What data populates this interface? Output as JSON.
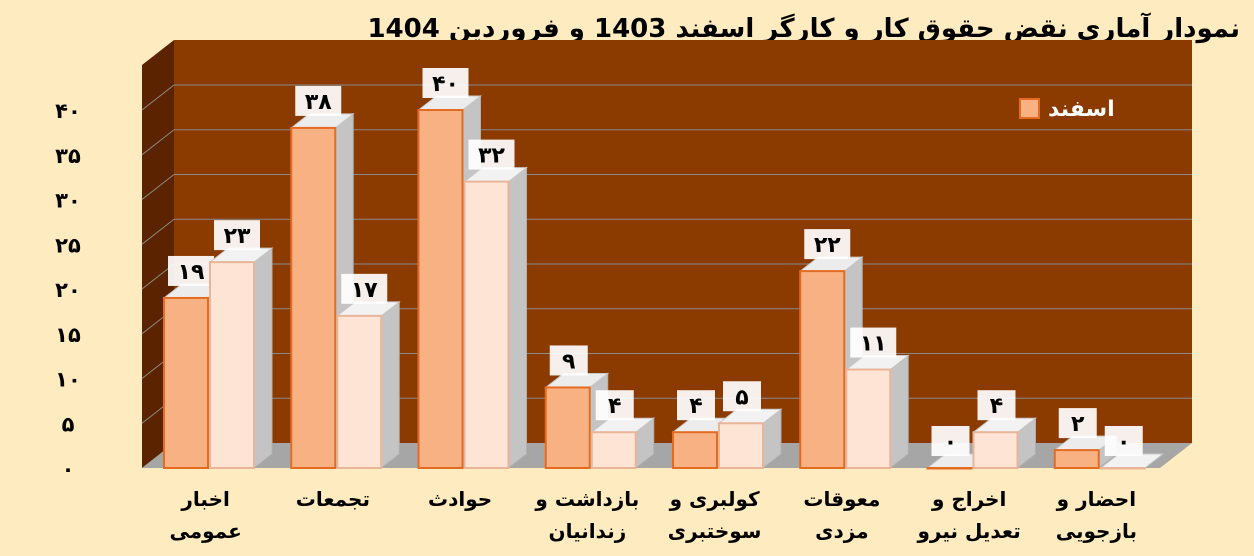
{
  "chart_data": {
    "type": "bar",
    "title": "نمودار آماری نقض حقوق کار و کارگر اسفند  1403 و فروردین 1404",
    "categories": [
      [
        "اخبار",
        "عمومی"
      ],
      [
        "تجمعات"
      ],
      [
        "حوادث"
      ],
      [
        "بازداشت و",
        "زندانیان"
      ],
      [
        "کولبری و",
        "سوختبری"
      ],
      [
        "معوقات",
        "مزدی"
      ],
      [
        "اخراج و",
        "تعدیل نیرو"
      ],
      [
        "احضار و",
        "بازجویی"
      ]
    ],
    "series": [
      {
        "name": "اسفند",
        "values": [
          19,
          38,
          40,
          9,
          4,
          22,
          0,
          2
        ],
        "value_labels": [
          "۱۹",
          "۳۸",
          "۴۰",
          "۹",
          "۴",
          "۲۲",
          "۰",
          "۲"
        ]
      },
      {
        "values": [
          23,
          17,
          32,
          4,
          5,
          11,
          4,
          0
        ],
        "value_labels": [
          "۲۳",
          "۱۷",
          "۳۲",
          "۴",
          "۵",
          "۱۱",
          "۴",
          "۰"
        ]
      }
    ],
    "ylim": [
      0,
      40
    ],
    "yticks": [
      0,
      5,
      10,
      15,
      20,
      25,
      30,
      35,
      40
    ],
    "ytick_labels": [
      "۰",
      "۵",
      "۱۰",
      "۱۵",
      "۲۰",
      "۲۵",
      "۳۰",
      "۳۵",
      "۴۰"
    ],
    "xlabel": "",
    "ylabel": "",
    "grid": true,
    "legend_position": "top-right",
    "colors": {
      "page_background": "#ffebc0",
      "plot_background": "#8b3a00",
      "plot_side_wall": "#5c2300",
      "floor": "#a6a6a6",
      "series_1_fill": "#f7b183",
      "series_1_stroke": "#e46c22",
      "series_2_fill": "#fde4d4",
      "series_2_stroke": "#e8b598"
    }
  }
}
